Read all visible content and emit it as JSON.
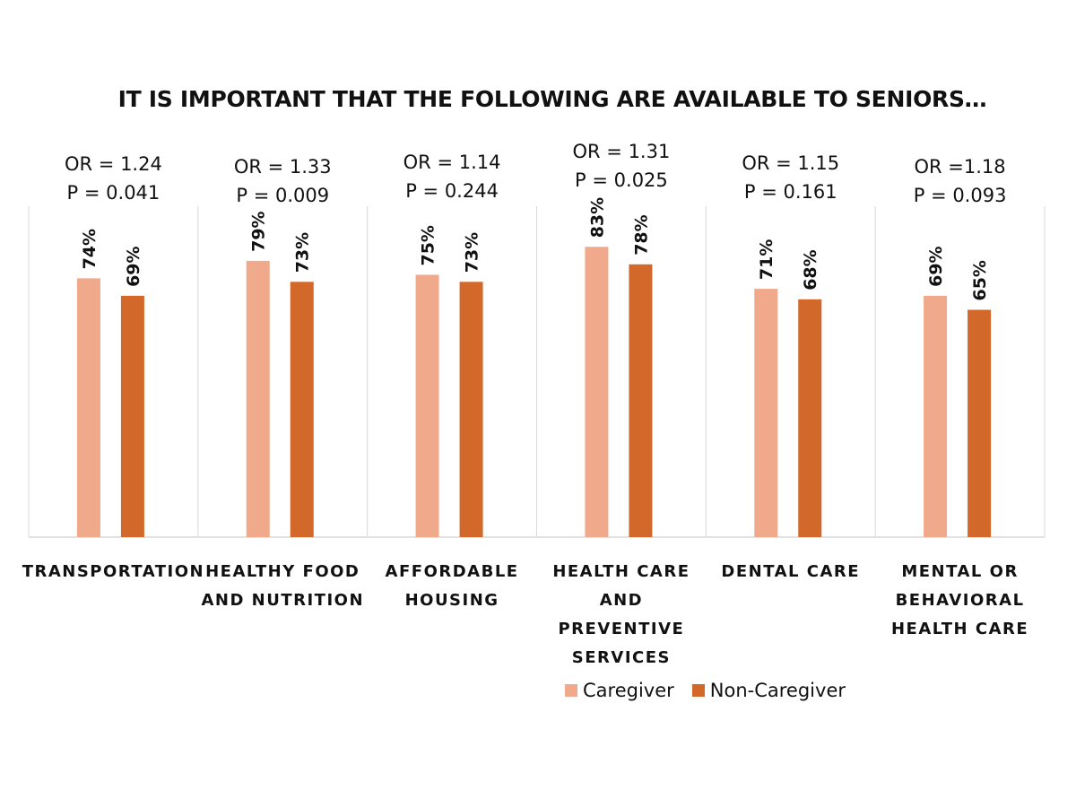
{
  "chart_data": {
    "type": "bar",
    "title": "IT IS IMPORTANT THAT THE FOLLOWING ARE AVAILABLE TO SENIORS…",
    "categories": [
      [
        "TRANSPORTATION"
      ],
      [
        "HEALTHY FOOD",
        "AND NUTRITION"
      ],
      [
        "AFFORDABLE",
        "HOUSING"
      ],
      [
        "HEALTH CARE AND",
        "PREVENTIVE",
        "SERVICES"
      ],
      [
        "DENTAL CARE"
      ],
      [
        "MENTAL OR",
        "BEHAVIORAL",
        "HEALTH CARE"
      ]
    ],
    "series": [
      {
        "name": "Caregiver",
        "color": "#f0a98a",
        "values": [
          74,
          79,
          75,
          83,
          71,
          69
        ],
        "labels": [
          "74%",
          "79%",
          "75%",
          "83%",
          "71%",
          "69%"
        ]
      },
      {
        "name": "Non-Caregiver",
        "color": "#d2692a",
        "values": [
          69,
          73,
          73,
          78,
          68,
          65
        ],
        "labels": [
          "69%",
          "73%",
          "73%",
          "78%",
          "68%",
          "65%"
        ]
      }
    ],
    "annotations": [
      [
        "OR = 1.24",
        "P = 0.041"
      ],
      [
        "OR = 1.33",
        "P = 0.009"
      ],
      [
        "OR = 1.14",
        "P = 0.244"
      ],
      [
        "OR = 1.31",
        "P = 0.025"
      ],
      [
        "OR = 1.15",
        "P = 0.161"
      ],
      [
        "OR =1.18",
        "P = 0.093"
      ]
    ],
    "ylim": [
      0,
      100
    ],
    "grid": false,
    "legend_position": "bottom",
    "gridline_color": "#d9d9d9"
  }
}
